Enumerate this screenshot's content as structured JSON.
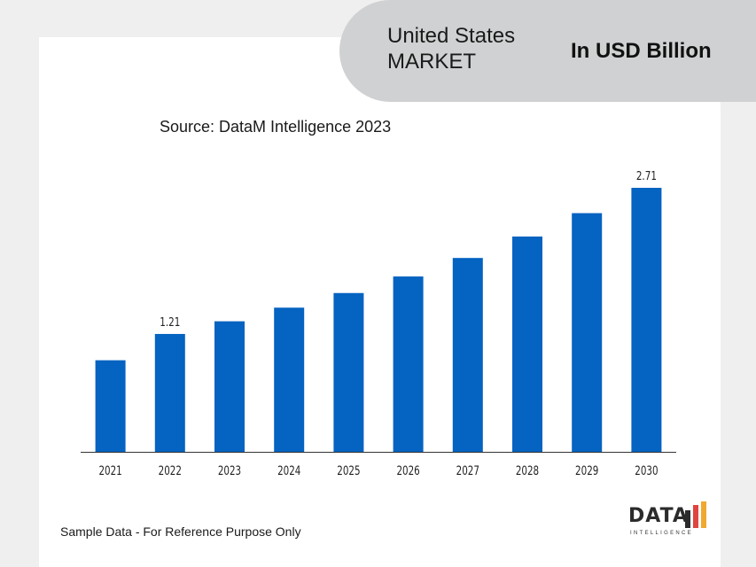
{
  "header": {
    "region_title": "United States\nMARKET",
    "unit": "In USD Billion"
  },
  "source_text": "Source: DataM Intelligence 2023",
  "footer_note": "Sample Data - For Reference Purpose Only",
  "logo": {
    "text": "DATA",
    "sub": "INTELLIGENCE"
  },
  "colors": {
    "bar": "#0563c1",
    "header": "#cfd1d2",
    "background": "#efefef"
  },
  "chart_data": {
    "type": "bar",
    "categories": [
      "2021",
      "2022",
      "2023",
      "2024",
      "2025",
      "2026",
      "2027",
      "2028",
      "2029",
      "2030"
    ],
    "values": [
      0.94,
      1.21,
      1.34,
      1.48,
      1.63,
      1.8,
      1.99,
      2.21,
      2.45,
      2.71
    ],
    "data_labels": [
      "",
      "1.21",
      "",
      "",
      "",
      "",
      "",
      "",
      "",
      "2.71"
    ],
    "ylim": [
      0,
      2.71
    ],
    "grid": false,
    "legend": "none"
  }
}
